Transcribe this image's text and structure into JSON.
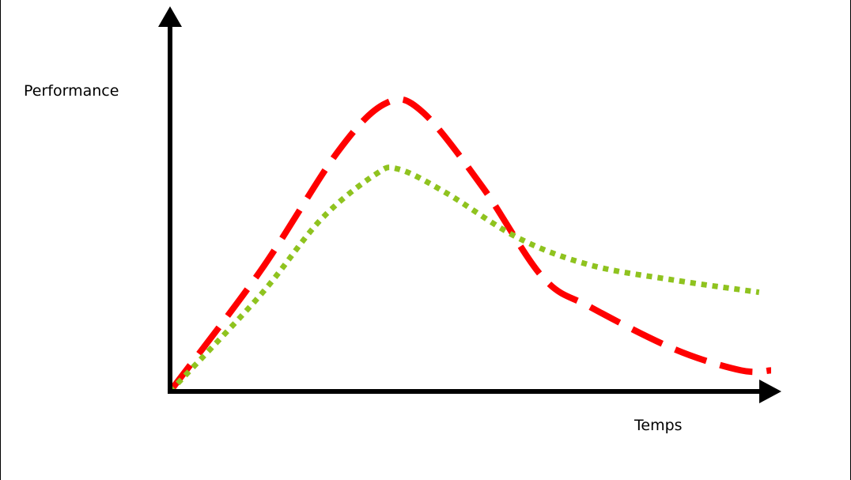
{
  "chart_data": {
    "type": "line",
    "title": "",
    "xlabel": "Temps",
    "ylabel": "Performance",
    "xlim": [
      0,
      10
    ],
    "ylim": [
      0,
      10
    ],
    "grid": false,
    "series": [
      {
        "name": "",
        "color": "#ff0000",
        "style": "dashed",
        "x": [
          0,
          1.5,
          2.8,
          3.6,
          4.2,
          5.2,
          6.2,
          7.0,
          8.4,
          9.5,
          10
        ],
        "y": [
          0,
          4.0,
          8.0,
          9.6,
          9.3,
          6.8,
          3.8,
          2.8,
          1.4,
          0.7,
          0.7
        ]
      },
      {
        "name": "",
        "color": "#8fc31f",
        "style": "dotted",
        "x": [
          0,
          1.5,
          2.5,
          3.4,
          3.8,
          4.6,
          5.8,
          7.0,
          8.4,
          9.8
        ],
        "y": [
          0,
          3.2,
          5.7,
          7.2,
          7.4,
          6.6,
          5.1,
          4.2,
          3.7,
          3.3
        ]
      }
    ]
  }
}
